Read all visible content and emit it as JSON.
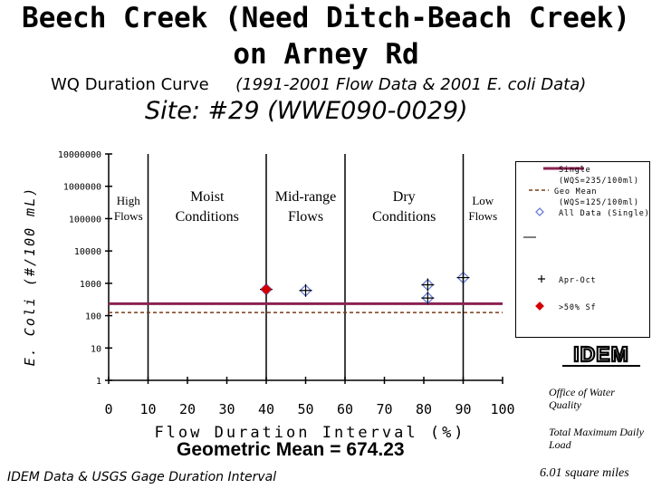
{
  "header": {
    "title_line1": "Beech Creek (Need Ditch-Beach Creek)",
    "title_line2": "on Arney Rd",
    "subtitle_left": "WQ Duration Curve",
    "subtitle_right": "(1991-2001 Flow Data & 2001 ",
    "subtitle_ecoli": "E. coli",
    "subtitle_end": " Data)",
    "site": "Site:  #29 (WWE090-0029)"
  },
  "footer": {
    "geomean": "Geometric Mean = 674.23",
    "source": "IDEM Data & USGS Gage Duration Interval",
    "office": "Office of Water Quality",
    "tmdl": "Total Maximum Daily Load",
    "area": "6.01 square miles"
  },
  "logo": {
    "text": "IDEM"
  },
  "colors": {
    "wqs_line": "#8b2252",
    "mean_line": "#7a3b1a",
    "diamond": "#6a7fd8",
    "plus": "#000000",
    "exceed": "#d40000"
  },
  "chart_data": {
    "type": "scatter",
    "xlabel": "Flow Duration Interval (%)",
    "ylabel": "E. Coli (#/100 mL)",
    "xlim": [
      0,
      100
    ],
    "ylim": [
      1,
      10000000
    ],
    "y_scale": "log",
    "x_ticks": [
      "0",
      "10",
      "20",
      "30",
      "40",
      "50",
      "60",
      "70",
      "80",
      "90",
      "100"
    ],
    "y_ticks": [
      "1",
      "10",
      "100",
      "1000",
      "10000",
      "100000",
      "1000000",
      "10000000"
    ],
    "grid": false,
    "legend_position": "right",
    "zones": [
      {
        "label_lines": [
          "High",
          "Flows"
        ],
        "x": [
          0,
          10
        ]
      },
      {
        "label_lines": [
          "Moist",
          "Conditions"
        ],
        "x": [
          10,
          40
        ]
      },
      {
        "label_lines": [
          "Mid-range",
          "Flows"
        ],
        "x": [
          40,
          60
        ]
      },
      {
        "label_lines": [
          "Dry",
          "Conditions"
        ],
        "x": [
          60,
          90
        ]
      },
      {
        "label_lines": [
          "Low",
          "Flows"
        ],
        "x": [
          90,
          100
        ]
      }
    ],
    "reference_lines": [
      {
        "name": "Single (WQS=235/100ml)",
        "value": 235,
        "style": "solid"
      },
      {
        "name": "Geo Mean (WQS=125/100ml)",
        "value": 125,
        "style": "dashed"
      }
    ],
    "series": [
      {
        "name": "All Data (Single)",
        "marker": "diamond",
        "points": [
          [
            40,
            650
          ],
          [
            50,
            600
          ],
          [
            81,
            900
          ],
          [
            81,
            350
          ],
          [
            90,
            1500
          ]
        ]
      },
      {
        "name": "Apr-Oct",
        "marker": "plus",
        "points": [
          [
            40,
            650
          ],
          [
            50,
            600
          ],
          [
            81,
            900
          ],
          [
            81,
            350
          ],
          [
            90,
            1500
          ]
        ]
      },
      {
        "name": ">50% Sf",
        "marker": "filled-diamond",
        "points": [
          [
            40,
            650
          ]
        ]
      }
    ],
    "legend": [
      {
        "text": "Single",
        "marker": "wqs-line"
      },
      {
        "text": "(WQS=235/100ml)",
        "marker": "none"
      },
      {
        "text": "Geo Mean",
        "marker": "mean-line"
      },
      {
        "text": "(WQS=125/100ml)",
        "marker": "none"
      },
      {
        "text": "All Data (Single)",
        "marker": "diamond"
      },
      {
        "text": "",
        "marker": "separator"
      },
      {
        "text": "Apr-Oct",
        "marker": "plus"
      },
      {
        "text": ">50% Sf",
        "marker": "filled-diamond"
      }
    ]
  }
}
